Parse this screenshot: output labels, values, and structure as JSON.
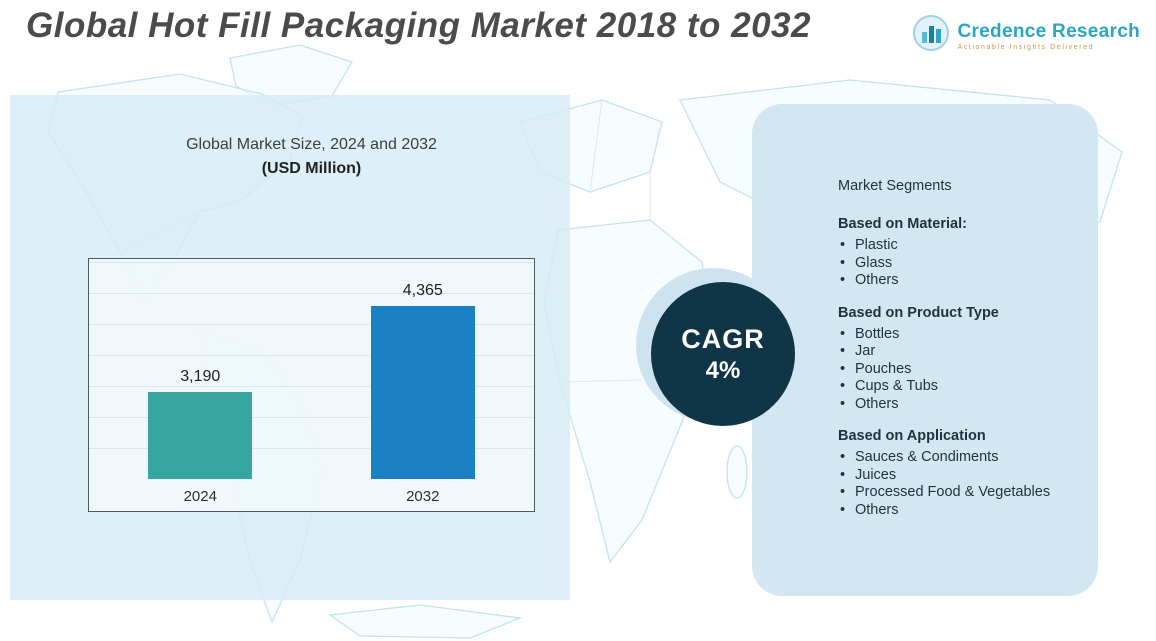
{
  "page_title": "Global Hot Fill Packaging Market 2018 to 2032",
  "logo": {
    "brand": "Credence Research",
    "tagline": "Actionable Insights Delivered",
    "accent_color": "#2aa5c6"
  },
  "chart_panel": {
    "title": "Global Market Size, 2024 and 2032",
    "subtitle": "(USD Million)"
  },
  "chart_data": {
    "type": "bar",
    "title": "Global Market Size, 2024 and 2032",
    "ylabel": "USD Million",
    "categories": [
      "2024",
      "2032"
    ],
    "values": [
      3190,
      4365
    ],
    "value_labels": [
      "3,190",
      "4,365"
    ],
    "bar_colors": [
      "#37a5a2",
      "#1b80c4"
    ],
    "ylim": [
      2000,
      5000
    ],
    "grid": true,
    "legend": false
  },
  "cagr_badge": {
    "label": "CAGR",
    "value": "4%"
  },
  "segments_panel": {
    "heading": "Market Segments",
    "groups": [
      {
        "title": "Based on Material:",
        "items": [
          "Plastic",
          "Glass",
          "Others"
        ]
      },
      {
        "title": "Based on Product Type",
        "items": [
          "Bottles",
          "Jar",
          "Pouches",
          "Cups & Tubs",
          "Others"
        ]
      },
      {
        "title": "Based on Application",
        "items": [
          "Sauces & Condiments",
          "Juices",
          "Processed Food & Vegetables",
          "Others"
        ]
      }
    ]
  }
}
